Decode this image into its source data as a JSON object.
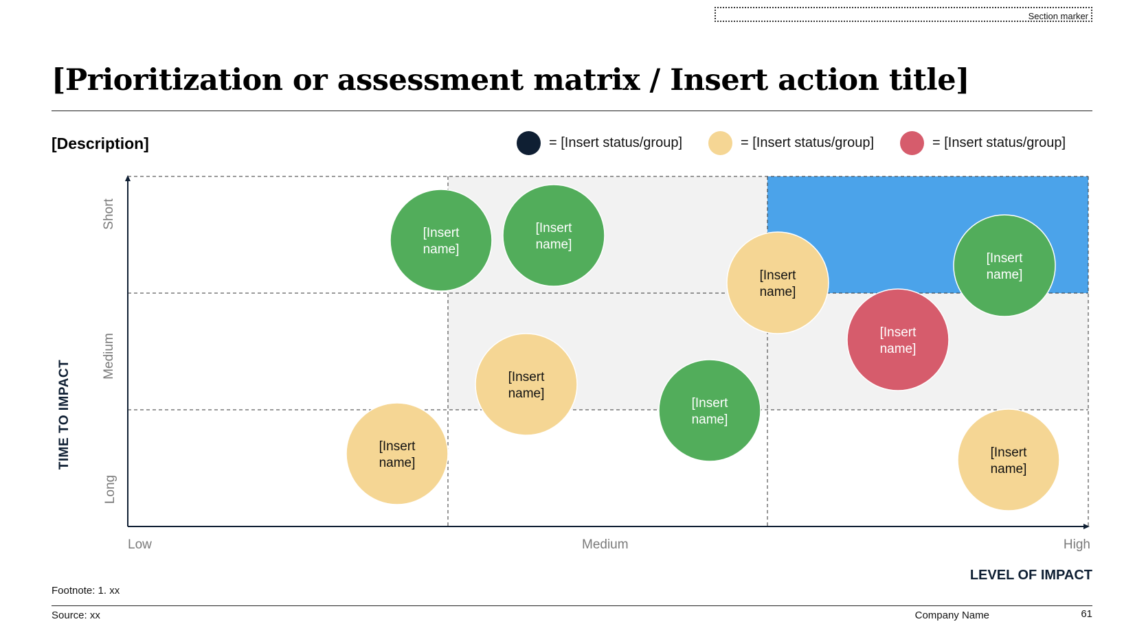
{
  "section_marker": "Section marker",
  "title": "[Prioritization or assessment matrix / Insert action title]",
  "description": "[Description]",
  "legend": [
    {
      "color": "#0f1f33",
      "label": "= [Insert status/group]"
    },
    {
      "color": "#f5d694",
      "label": "= [Insert status/group]"
    },
    {
      "color": "#d65c6c",
      "label": "= [Insert status/group]"
    }
  ],
  "colors": {
    "highlight_cell": "#4ba3ea",
    "shaded_cell": "#f2f2f2",
    "green": "#52ad5b",
    "yellow": "#f5d694",
    "red": "#d65c6c"
  },
  "y_axis": {
    "title": "TIME TO IMPACT",
    "ticks": [
      "Short",
      "Medium",
      "Long"
    ]
  },
  "x_axis": {
    "title": "LEVEL OF IMPACT",
    "ticks": [
      "Low",
      "Medium",
      "High"
    ]
  },
  "bubbles": [
    {
      "label_line1": "[Insert",
      "label_line2": "name]",
      "color": "#52ad5b",
      "text_color": "#ffffff"
    },
    {
      "label_line1": "[Insert",
      "label_line2": "name]",
      "color": "#52ad5b",
      "text_color": "#ffffff"
    },
    {
      "label_line1": "[Insert",
      "label_line2": "name]",
      "color": "#f5d694",
      "text_color": "#111111"
    },
    {
      "label_line1": "[Insert",
      "label_line2": "name]",
      "color": "#52ad5b",
      "text_color": "#ffffff"
    },
    {
      "label_line1": "[Insert",
      "label_line2": "name]",
      "color": "#d65c6c",
      "text_color": "#ffffff"
    },
    {
      "label_line1": "[Insert",
      "label_line2": "name]",
      "color": "#f5d694",
      "text_color": "#111111"
    },
    {
      "label_line1": "[Insert",
      "label_line2": "name]",
      "color": "#52ad5b",
      "text_color": "#ffffff"
    },
    {
      "label_line1": "[Insert",
      "label_line2": "name]",
      "color": "#f5d694",
      "text_color": "#111111"
    },
    {
      "label_line1": "[Insert",
      "label_line2": "name]",
      "color": "#f5d694",
      "text_color": "#111111"
    }
  ],
  "footnote": "Footnote: 1. xx",
  "source": "Source: xx",
  "company": "Company Name",
  "page_number": "61"
}
